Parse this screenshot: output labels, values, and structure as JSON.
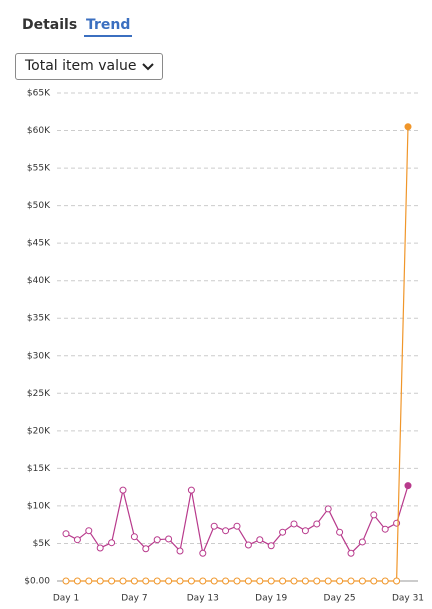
{
  "tabs": [
    "Details",
    "Trend"
  ],
  "dropdown": {
    "label": "Total item value"
  },
  "chart_data": {
    "type": "line",
    "categories": [
      "Day 1",
      null,
      null,
      null,
      null,
      null,
      "Day 7",
      null,
      null,
      null,
      null,
      null,
      "Day 13",
      null,
      null,
      null,
      null,
      null,
      "Day 19",
      null,
      null,
      null,
      null,
      null,
      "Day 25",
      null,
      null,
      null,
      null,
      null,
      "Day 31"
    ],
    "series": [
      {
        "color": "#b83a8c",
        "values": [
          6300,
          5500,
          6700,
          4400,
          5100,
          12100,
          5900,
          4300,
          5500,
          5600,
          4000,
          12100,
          3700,
          7300,
          6700,
          7300,
          4800,
          5500,
          4700,
          6500,
          7600,
          6700,
          7600,
          9600,
          6500,
          3700,
          5200,
          8800,
          6900,
          7700,
          12700
        ]
      },
      {
        "color": "#f0962a",
        "values": [
          0,
          0,
          0,
          0,
          0,
          0,
          0,
          0,
          0,
          0,
          0,
          0,
          0,
          0,
          0,
          0,
          0,
          0,
          0,
          0,
          0,
          0,
          0,
          0,
          0,
          0,
          0,
          0,
          0,
          0,
          60500
        ]
      }
    ],
    "ylim": [
      0,
      65000
    ],
    "yticks": [
      {
        "value": 0,
        "label": "$0.00"
      },
      {
        "value": 5000,
        "label": "$5K"
      },
      {
        "value": 10000,
        "label": "$10K"
      },
      {
        "value": 15000,
        "label": "$15K"
      },
      {
        "value": 20000,
        "label": "$20K"
      },
      {
        "value": 25000,
        "label": "$25K"
      },
      {
        "value": 30000,
        "label": "$30K"
      },
      {
        "value": 35000,
        "label": "$35K"
      },
      {
        "value": 40000,
        "label": "$40K"
      },
      {
        "value": 45000,
        "label": "$45K"
      },
      {
        "value": 50000,
        "label": "$50K"
      },
      {
        "value": 55000,
        "label": "$55K"
      },
      {
        "value": 60000,
        "label": "$60K"
      },
      {
        "value": 65000,
        "label": "$65K"
      }
    ],
    "grid": true
  }
}
